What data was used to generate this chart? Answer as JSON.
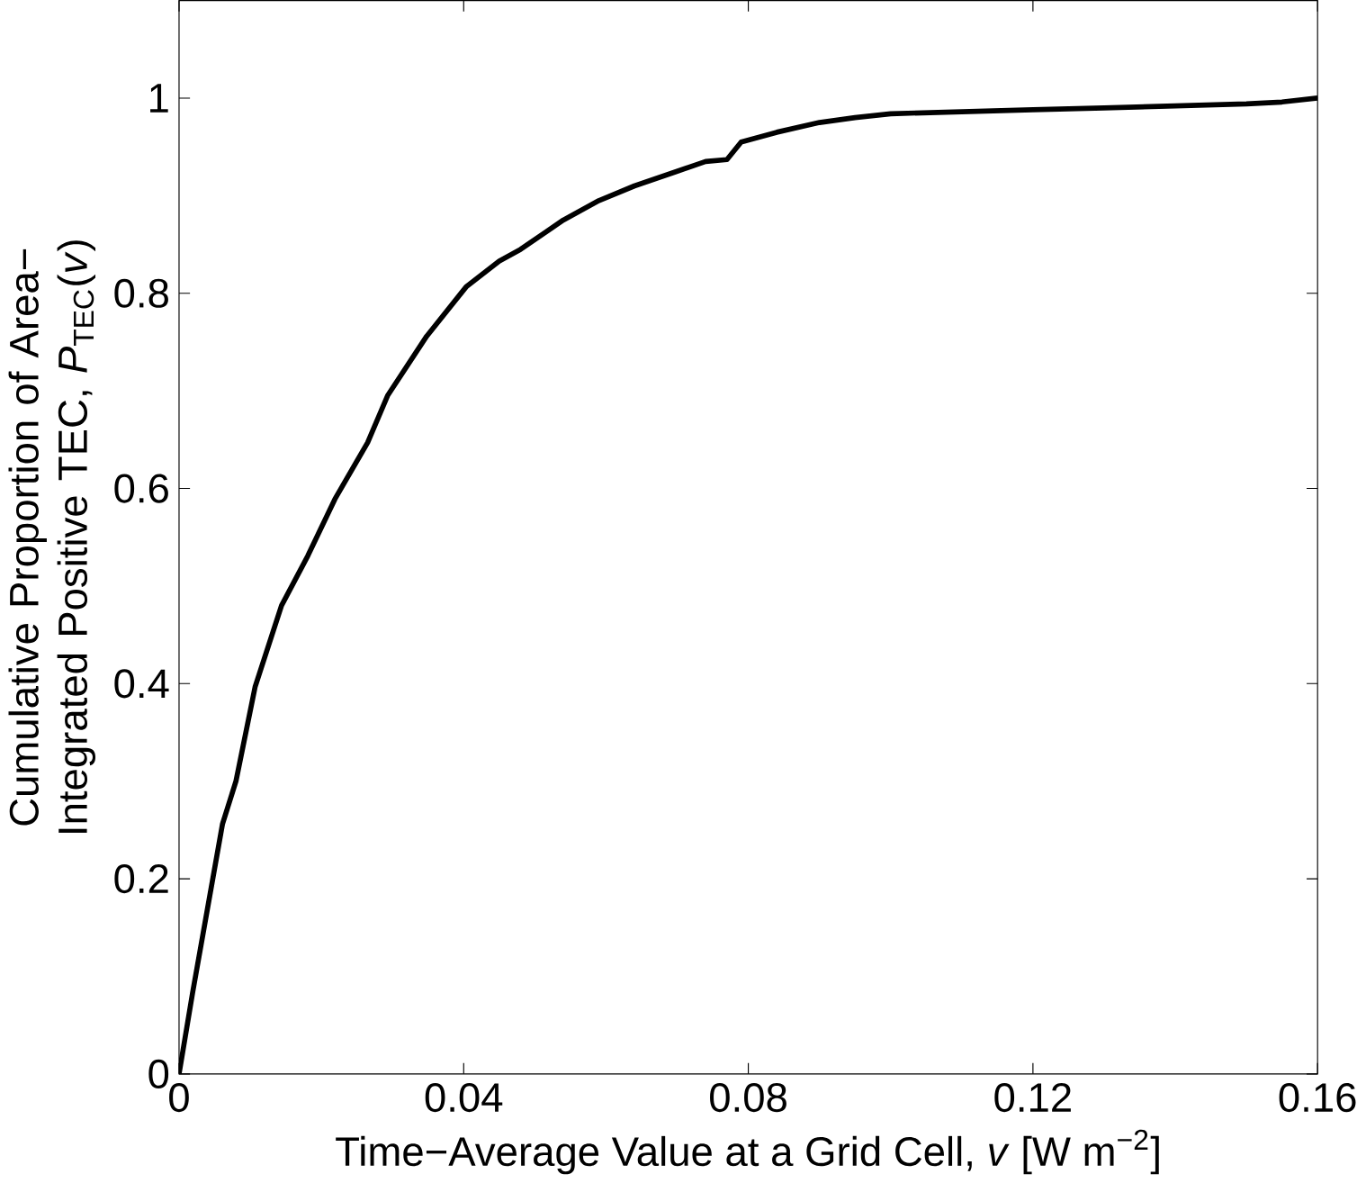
{
  "chart_data": {
    "type": "line",
    "xlabel": "Time−Average Value at a Grid Cell, *v*  [W m$^{−2}$]",
    "ylabel": "Cumulative Proportion of Area− Integrated Positive TEC, *P*$_{TEC}$(*v*)",
    "xlim": [
      0,
      0.16
    ],
    "ylim": [
      0,
      1.1
    ],
    "xticks": [
      0,
      0.04,
      0.08,
      0.12,
      0.16
    ],
    "yticks": [
      0,
      0.2,
      0.4,
      0.6,
      0.8,
      1
    ],
    "grid": false,
    "series": [
      {
        "color": "#000000",
        "x": [
          0,
          0.0019,
          0.0061,
          0.008,
          0.0107,
          0.0144,
          0.0181,
          0.0219,
          0.0265,
          0.0293,
          0.0348,
          0.0404,
          0.045,
          0.048,
          0.054,
          0.059,
          0.064,
          0.07,
          0.074,
          0.077,
          0.079,
          0.084,
          0.09,
          0.095,
          0.1,
          0.11,
          0.12,
          0.13,
          0.14,
          0.15,
          0.155,
          0.16
        ],
        "values": [
          0,
          0.083,
          0.256,
          0.3,
          0.397,
          0.48,
          0.531,
          0.589,
          0.647,
          0.695,
          0.756,
          0.807,
          0.833,
          0.845,
          0.875,
          0.895,
          0.91,
          0.925,
          0.935,
          0.937,
          0.955,
          0.965,
          0.975,
          0.98,
          0.984,
          0.986,
          0.988,
          0.99,
          0.992,
          0.994,
          0.996,
          1.0
        ]
      }
    ]
  }
}
